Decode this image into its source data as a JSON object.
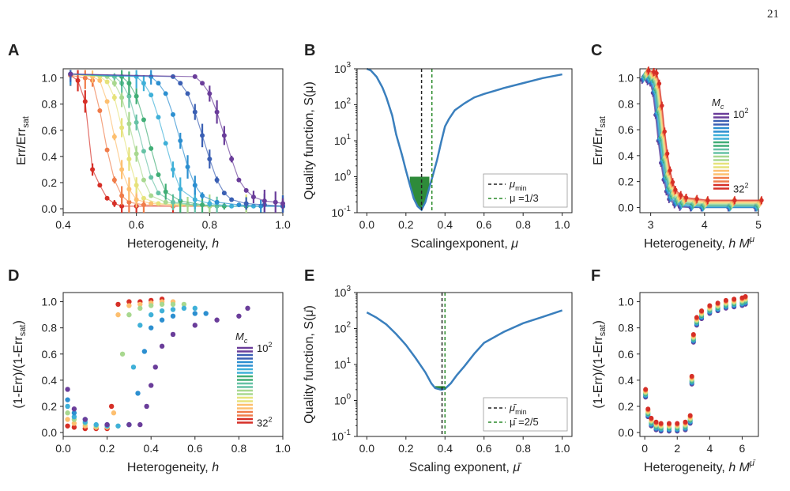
{
  "page_number": "21",
  "chart_data": [
    {
      "panel": "A",
      "type": "scatter",
      "xlabel": "Heterogeneity, h",
      "ylabel": "Err/Err_sat",
      "xlim": [
        0.4,
        1.0
      ],
      "ylim": [
        -0.03,
        1.07
      ],
      "xticks": [
        "0.4",
        "0.6",
        "0.8",
        "1.0"
      ],
      "yticks": [
        "0.0",
        "0.2",
        "0.4",
        "0.6",
        "0.8",
        "1.0"
      ],
      "note": "error bars; one series per system size Mc from 32^2 (red) to 10^2 (purple)",
      "series": [
        {
          "color": "#d62f27",
          "x": [
            0.42,
            0.44,
            0.46,
            0.48,
            0.5,
            0.52,
            0.54,
            0.56,
            0.6,
            0.7,
            0.8,
            0.9,
            1.0
          ],
          "y": [
            1.02,
            0.98,
            0.82,
            0.3,
            0.18,
            0.08,
            0.04,
            0.02,
            0.02,
            0.02,
            0.02,
            0.02,
            0.02
          ]
        },
        {
          "color": "#f07c4a",
          "x": [
            0.42,
            0.46,
            0.48,
            0.5,
            0.52,
            0.54,
            0.56,
            0.58,
            0.62,
            0.7,
            0.8,
            0.9,
            1.0
          ],
          "y": [
            1.02,
            1.0,
            0.98,
            0.75,
            0.45,
            0.22,
            0.1,
            0.05,
            0.03,
            0.02,
            0.02,
            0.02,
            0.02
          ]
        },
        {
          "color": "#fdbf6f",
          "x": [
            0.42,
            0.48,
            0.5,
            0.52,
            0.54,
            0.56,
            0.58,
            0.6,
            0.64,
            0.7,
            0.8,
            0.9,
            1.0
          ],
          "y": [
            1.03,
            1.01,
            0.98,
            0.82,
            0.55,
            0.3,
            0.15,
            0.07,
            0.04,
            0.03,
            0.02,
            0.02,
            0.02
          ]
        },
        {
          "color": "#e6e27a",
          "x": [
            0.42,
            0.5,
            0.52,
            0.54,
            0.56,
            0.58,
            0.6,
            0.62,
            0.66,
            0.72,
            0.8,
            0.9,
            1.0
          ],
          "y": [
            1.03,
            1.01,
            0.97,
            0.85,
            0.62,
            0.38,
            0.18,
            0.08,
            0.04,
            0.03,
            0.02,
            0.02,
            0.02
          ]
        },
        {
          "color": "#a8d88f",
          "x": [
            0.42,
            0.52,
            0.54,
            0.56,
            0.58,
            0.6,
            0.62,
            0.64,
            0.68,
            0.74,
            0.8,
            0.9,
            1.0
          ],
          "y": [
            1.03,
            1.01,
            0.96,
            0.85,
            0.65,
            0.42,
            0.22,
            0.1,
            0.05,
            0.03,
            0.02,
            0.02,
            0.02
          ]
        },
        {
          "color": "#66c2a5",
          "x": [
            0.42,
            0.54,
            0.56,
            0.58,
            0.6,
            0.62,
            0.64,
            0.66,
            0.7,
            0.76,
            0.82,
            0.9,
            1.0
          ],
          "y": [
            1.03,
            1.01,
            0.96,
            0.86,
            0.66,
            0.44,
            0.24,
            0.12,
            0.05,
            0.03,
            0.02,
            0.02,
            0.02
          ]
        },
        {
          "color": "#41ae76",
          "x": [
            0.42,
            0.56,
            0.58,
            0.6,
            0.62,
            0.64,
            0.66,
            0.68,
            0.72,
            0.78,
            0.84,
            0.9,
            1.0
          ],
          "y": [
            1.03,
            1.01,
            0.96,
            0.86,
            0.68,
            0.46,
            0.26,
            0.13,
            0.06,
            0.03,
            0.02,
            0.02,
            0.02
          ]
        },
        {
          "color": "#3fb0d8",
          "x": [
            0.42,
            0.6,
            0.62,
            0.64,
            0.66,
            0.68,
            0.7,
            0.72,
            0.76,
            0.8,
            0.86,
            0.92,
            1.0
          ],
          "y": [
            1.03,
            1.01,
            0.96,
            0.87,
            0.7,
            0.5,
            0.3,
            0.15,
            0.07,
            0.04,
            0.02,
            0.02,
            0.02
          ]
        },
        {
          "color": "#2c8fd0",
          "x": [
            0.42,
            0.64,
            0.66,
            0.68,
            0.7,
            0.72,
            0.74,
            0.76,
            0.78,
            0.82,
            0.88,
            0.94,
            1.0
          ],
          "y": [
            1.03,
            1.01,
            0.96,
            0.88,
            0.72,
            0.52,
            0.32,
            0.18,
            0.1,
            0.05,
            0.03,
            0.02,
            0.02
          ]
        },
        {
          "color": "#3a5fb3",
          "x": [
            0.42,
            0.7,
            0.72,
            0.74,
            0.76,
            0.78,
            0.8,
            0.82,
            0.84,
            0.86,
            0.9,
            0.95,
            1.0
          ],
          "y": [
            1.03,
            1.01,
            0.96,
            0.88,
            0.74,
            0.56,
            0.38,
            0.22,
            0.12,
            0.07,
            0.04,
            0.03,
            0.02
          ]
        },
        {
          "color": "#6a3d9a",
          "x": [
            0.42,
            0.76,
            0.78,
            0.8,
            0.82,
            0.84,
            0.86,
            0.88,
            0.9,
            0.92,
            0.95,
            0.98,
            1.0
          ],
          "y": [
            1.03,
            1.01,
            0.96,
            0.88,
            0.74,
            0.56,
            0.38,
            0.22,
            0.14,
            0.09,
            0.06,
            0.05,
            0.04
          ]
        }
      ]
    },
    {
      "panel": "B",
      "type": "line",
      "yscale": "log",
      "xlabel": "Scalingexponent, μ",
      "ylabel": "Quality function, S(μ)",
      "xlim": [
        -0.05,
        1.05
      ],
      "ylim": [
        0.1,
        1000
      ],
      "xticks": [
        "0.0",
        "0.2",
        "0.4",
        "0.6",
        "0.8",
        "1.0"
      ],
      "yticks": [
        "10^-1",
        "10^0",
        "10^1",
        "10^2",
        "10^3"
      ],
      "x": [
        0.0,
        0.02,
        0.05,
        0.08,
        0.1,
        0.13,
        0.15,
        0.18,
        0.2,
        0.22,
        0.24,
        0.26,
        0.28,
        0.3,
        0.32,
        0.34,
        0.36,
        0.38,
        0.4,
        0.42,
        0.45,
        0.5,
        0.55,
        0.6,
        0.65,
        0.7,
        0.8,
        0.9,
        1.0
      ],
      "y": [
        1000,
        900,
        600,
        300,
        160,
        50,
        15,
        4,
        1.5,
        0.6,
        0.25,
        0.15,
        0.12,
        0.2,
        0.5,
        1.2,
        3,
        9,
        25,
        40,
        70,
        110,
        160,
        200,
        240,
        290,
        400,
        550,
        700
      ],
      "vlines": [
        {
          "x": 0.28,
          "label": "μmin",
          "color": "#222222"
        },
        {
          "x": 0.333,
          "label": "μ=1/3",
          "color": "#2a8a2a"
        }
      ],
      "shaded_below": 1.0,
      "legend": [
        "μmin",
        "μ=1/3"
      ]
    },
    {
      "panel": "C",
      "type": "scatter",
      "xlabel": "Heterogeneity, h M^μ",
      "ylabel": "Err/Err_sat",
      "xlim": [
        2.8,
        5.0
      ],
      "ylim": [
        -0.04,
        1.07
      ],
      "xticks": [
        "3",
        "4",
        "5"
      ],
      "yticks": [
        "0.0",
        "0.2",
        "0.4",
        "0.6",
        "0.8",
        "1.0"
      ],
      "note": "collapsed curves for all Mc",
      "legend": {
        "title": "Mc",
        "top": "10²",
        "bottom": "32²"
      },
      "x": [
        2.9,
        3.0,
        3.05,
        3.1,
        3.15,
        3.2,
        3.25,
        3.3,
        3.35,
        3.4,
        3.5,
        3.6,
        3.8,
        4.0,
        4.5,
        5.0
      ],
      "y": [
        1.02,
        1.01,
        1.0,
        0.92,
        0.75,
        0.55,
        0.38,
        0.25,
        0.16,
        0.1,
        0.06,
        0.04,
        0.03,
        0.02,
        0.02,
        0.02
      ]
    },
    {
      "panel": "D",
      "type": "scatter",
      "xlabel": "Heterogeneity, h",
      "ylabel": "(1-Err)/(1-Err_sat)",
      "xlim": [
        0.0,
        1.0
      ],
      "ylim": [
        -0.03,
        1.07
      ],
      "xticks": [
        "0.0",
        "0.2",
        "0.4",
        "0.6",
        "0.8",
        "1.0"
      ],
      "yticks": [
        "0.0",
        "0.2",
        "0.4",
        "0.6",
        "0.8",
        "1.0"
      ],
      "legend": {
        "title": "Mc",
        "top": "10²",
        "bottom": "32²"
      },
      "series": [
        {
          "color": "#d62f27",
          "x": [
            0.02,
            0.05,
            0.1,
            0.15,
            0.2,
            0.22,
            0.25,
            0.3,
            0.35,
            0.4,
            0.45
          ],
          "y": [
            0.05,
            0.04,
            0.03,
            0.03,
            0.03,
            0.2,
            0.98,
            1.0,
            1.0,
            1.01,
            1.02
          ]
        },
        {
          "color": "#fdbf6f",
          "x": [
            0.02,
            0.05,
            0.1,
            0.15,
            0.2,
            0.23,
            0.25,
            0.3,
            0.35,
            0.4,
            0.45,
            0.5
          ],
          "y": [
            0.1,
            0.07,
            0.05,
            0.04,
            0.04,
            0.15,
            0.9,
            0.97,
            0.98,
            0.99,
            1.0,
            1.0
          ]
        },
        {
          "color": "#a8d88f",
          "x": [
            0.02,
            0.05,
            0.1,
            0.15,
            0.2,
            0.25,
            0.27,
            0.3,
            0.35,
            0.4,
            0.45,
            0.5,
            0.55
          ],
          "y": [
            0.15,
            0.1,
            0.07,
            0.05,
            0.05,
            0.05,
            0.6,
            0.9,
            0.95,
            0.97,
            0.98,
            0.98,
            0.98
          ]
        },
        {
          "color": "#3fb0d8",
          "x": [
            0.02,
            0.05,
            0.1,
            0.15,
            0.2,
            0.25,
            0.3,
            0.32,
            0.35,
            0.4,
            0.45,
            0.5,
            0.55,
            0.6
          ],
          "y": [
            0.2,
            0.12,
            0.08,
            0.06,
            0.05,
            0.05,
            0.06,
            0.5,
            0.82,
            0.9,
            0.93,
            0.94,
            0.95,
            0.95
          ]
        },
        {
          "color": "#2c8fd0",
          "x": [
            0.02,
            0.05,
            0.1,
            0.2,
            0.3,
            0.34,
            0.37,
            0.4,
            0.45,
            0.5,
            0.6,
            0.65
          ],
          "y": [
            0.25,
            0.15,
            0.1,
            0.06,
            0.06,
            0.3,
            0.62,
            0.8,
            0.86,
            0.89,
            0.91,
            0.91
          ]
        },
        {
          "color": "#6a3d9a",
          "x": [
            0.02,
            0.05,
            0.1,
            0.2,
            0.3,
            0.35,
            0.38,
            0.4,
            0.42,
            0.45,
            0.5,
            0.6,
            0.7,
            0.8,
            0.84
          ],
          "y": [
            0.33,
            0.18,
            0.1,
            0.06,
            0.06,
            0.06,
            0.2,
            0.36,
            0.5,
            0.66,
            0.75,
            0.82,
            0.86,
            0.89,
            0.95
          ]
        }
      ]
    },
    {
      "panel": "E",
      "type": "line",
      "yscale": "log",
      "xlabel": "Scaling exponent, μ̄",
      "ylabel": "Quality function, S(μ̄)",
      "xlim": [
        -0.05,
        1.05
      ],
      "ylim": [
        0.1,
        1000
      ],
      "xticks": [
        "0.0",
        "0.2",
        "0.4",
        "0.6",
        "0.8",
        "1.0"
      ],
      "yticks": [
        "10^-1",
        "10^0",
        "10^1",
        "10^2",
        "10^3"
      ],
      "x": [
        0.0,
        0.05,
        0.1,
        0.15,
        0.2,
        0.25,
        0.3,
        0.33,
        0.35,
        0.38,
        0.4,
        0.43,
        0.46,
        0.5,
        0.55,
        0.6,
        0.7,
        0.8,
        0.9,
        1.0
      ],
      "y": [
        280,
        200,
        130,
        70,
        35,
        15,
        6,
        3,
        2.2,
        2.0,
        2.1,
        3,
        5,
        9,
        20,
        40,
        80,
        140,
        210,
        320
      ],
      "vlines": [
        {
          "x": 0.385,
          "label": "μ̄min",
          "color": "#222222"
        },
        {
          "x": 0.4,
          "label": "μ̄=2/5",
          "color": "#2a8a2a"
        }
      ],
      "shaded_below": 2.5,
      "legend": [
        "μ̄min",
        "μ̄=2/5"
      ]
    },
    {
      "panel": "F",
      "type": "scatter",
      "xlabel": "Heterogeneity, h M^μ̄",
      "ylabel": "(1-Err)/(1-Err_sat)",
      "xlim": [
        -0.3,
        7.0
      ],
      "ylim": [
        -0.03,
        1.07
      ],
      "xticks": [
        "0",
        "2",
        "4",
        "6"
      ],
      "yticks": [
        "0.0",
        "0.2",
        "0.4",
        "0.6",
        "0.8",
        "1.0"
      ],
      "x": [
        0.05,
        0.2,
        0.4,
        0.7,
        1.0,
        1.5,
        2.0,
        2.5,
        2.8,
        2.9,
        3.0,
        3.2,
        3.5,
        4.0,
        4.5,
        5.0,
        5.5,
        6.0,
        6.2
      ],
      "y": [
        0.3,
        0.15,
        0.08,
        0.05,
        0.04,
        0.04,
        0.04,
        0.05,
        0.1,
        0.4,
        0.72,
        0.85,
        0.9,
        0.94,
        0.96,
        0.98,
        0.99,
        1.0,
        1.01
      ]
    }
  ],
  "labels": {
    "A": {
      "panel": "A",
      "xlabel": "Heterogeneity, ",
      "xvar": "h",
      "ylabel_main": "Err/Err",
      "ylabel_sub": "sat"
    },
    "B": {
      "panel": "B",
      "xlabel": "Scalingexponent, ",
      "xvar": "μ",
      "ylabel": "Quality function, S(μ)",
      "leg1": "μ",
      "leg1_sub": "min",
      "leg2": "μ =1/3"
    },
    "C": {
      "panel": "C",
      "xlabel": "Heterogeneity, ",
      "xvar": "h M",
      "xsup": "μ",
      "ylabel_main": "Err/Err",
      "ylabel_sub": "sat",
      "leg_title": "M",
      "leg_title_sub": "c",
      "leg_top": "10",
      "leg_top_sup": "2",
      "leg_bot": "32",
      "leg_bot_sup": "2"
    },
    "D": {
      "panel": "D",
      "xlabel": "Heterogeneity, ",
      "xvar": "h",
      "ylabel_main": "(1-Err)/(1-Err",
      "ylabel_sub": "sat",
      "ylabel_end": ")",
      "leg_title": "M",
      "leg_title_sub": "c",
      "leg_top": "10",
      "leg_top_sup": "2",
      "leg_bot": "32",
      "leg_bot_sup": "2"
    },
    "E": {
      "panel": "E",
      "xlabel": "Scaling exponent, ",
      "xvar": "μ̄",
      "ylabel": "Quality function, S(μ̄)",
      "leg1": "μ̄",
      "leg1_sub": "min",
      "leg2": "μ̄ =2/5"
    },
    "F": {
      "panel": "F",
      "xlabel": "Heterogeneity, ",
      "xvar": "h M",
      "xsup": "μ̄",
      "ylabel_main": "(1-Err)/(1-Err",
      "ylabel_sub": "sat",
      "ylabel_end": ")"
    }
  },
  "colors": {
    "palette": [
      "#6a3d9a",
      "#3a5fb3",
      "#2c8fd0",
      "#3fb0d8",
      "#41ae76",
      "#66c2a5",
      "#a8d88f",
      "#e6e27a",
      "#fdbf6f",
      "#f07c4a",
      "#d62f27"
    ],
    "curve": "#3a7fbd",
    "shade": "#2e8b3a",
    "green_line": "#2a8a2a",
    "black_line": "#222222"
  }
}
